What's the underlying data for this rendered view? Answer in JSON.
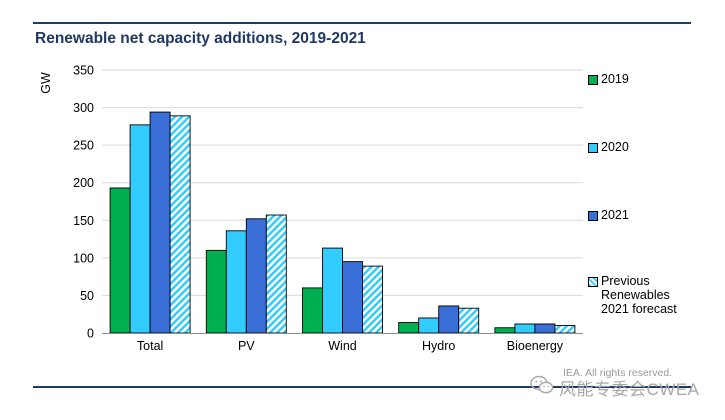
{
  "title": "Renewable net capacity additions, 2019-2021",
  "copyright": "IEA. All rights reserved.",
  "watermark": {
    "text": "风能专委会CWEA",
    "icon": "wechat-icon"
  },
  "chart_data": {
    "type": "bar",
    "title": "Renewable net capacity additions, 2019-2021",
    "xlabel": "",
    "ylabel": "GW",
    "ylim": [
      0,
      350
    ],
    "yticks": [
      0,
      50,
      100,
      150,
      200,
      250,
      300,
      350
    ],
    "grid": true,
    "legend_position": "right",
    "categories": [
      "Total",
      "PV",
      "Wind",
      "Hydro",
      "Bioenergy"
    ],
    "series": [
      {
        "name": "2019",
        "values": [
          193,
          110,
          60,
          14,
          7
        ],
        "color": "#00b050",
        "pattern": "solid"
      },
      {
        "name": "2020",
        "values": [
          277,
          136,
          113,
          20,
          12
        ],
        "color": "#33ccff",
        "pattern": "solid"
      },
      {
        "name": "2021",
        "values": [
          294,
          152,
          95,
          36,
          12
        ],
        "color": "#3a6fd8",
        "pattern": "solid"
      },
      {
        "name": "Previous Renewables 2021 forecast",
        "values": [
          289,
          157,
          89,
          33,
          10
        ],
        "color": "#33ccff",
        "pattern": "hatched"
      }
    ],
    "legend_lines": [
      [
        "2019"
      ],
      [
        "2020"
      ],
      [
        "2021"
      ],
      [
        "Previous",
        "Renewables",
        "2021 forecast"
      ]
    ]
  }
}
